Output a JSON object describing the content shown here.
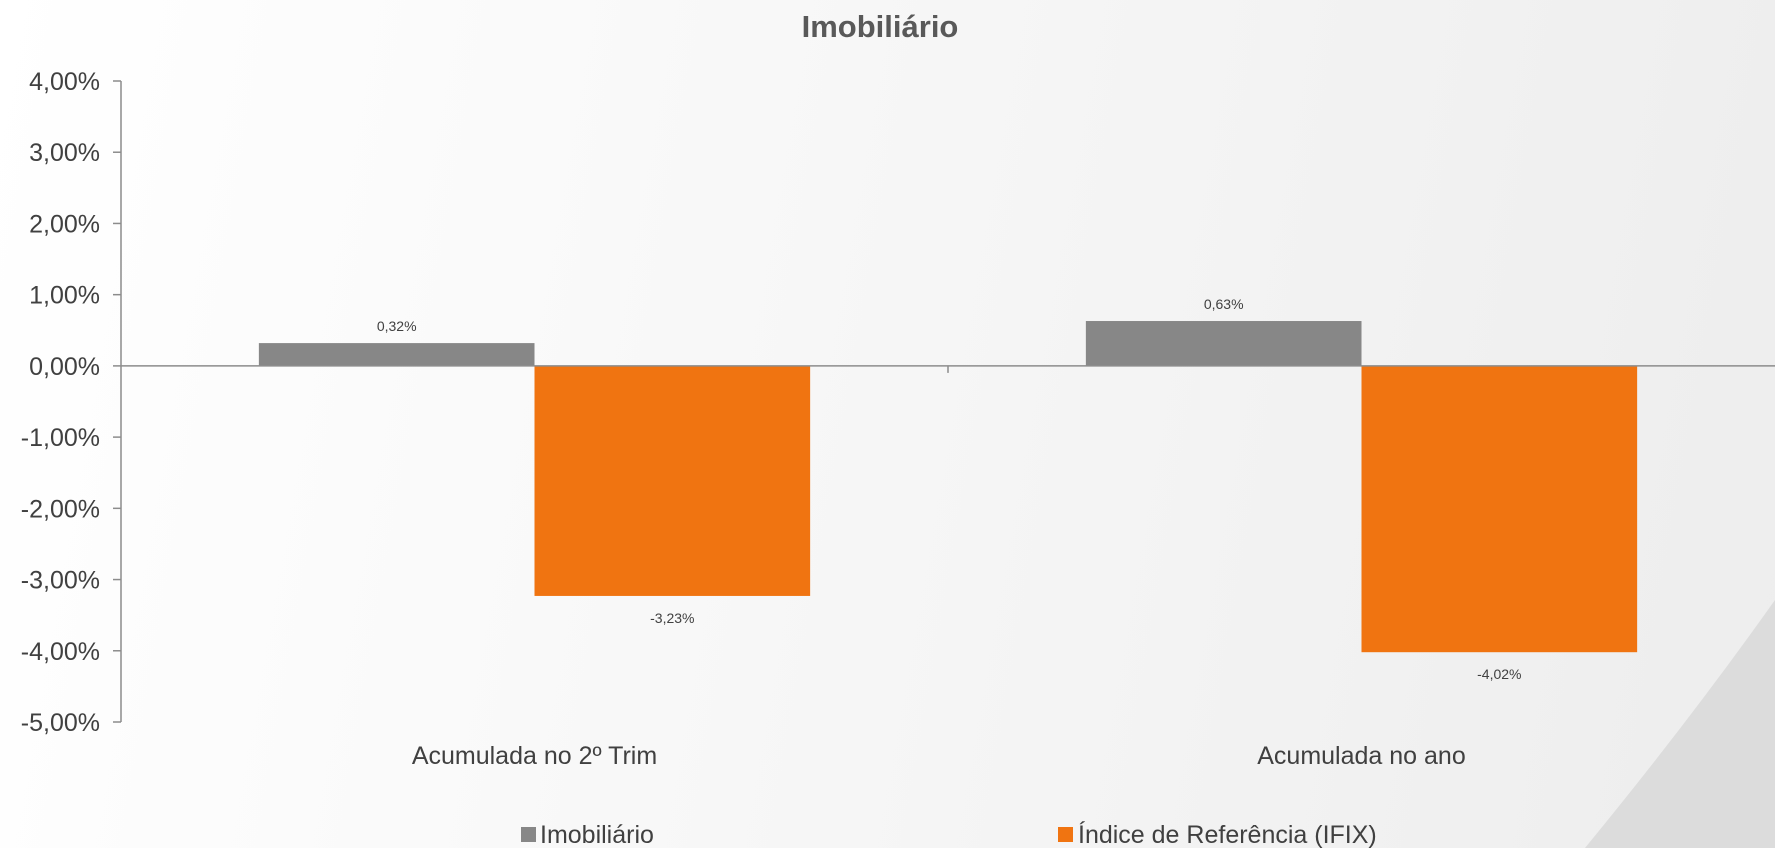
{
  "chart_data": {
    "type": "bar",
    "title": "Imobiliário",
    "categories": [
      "Acumulada no 2º Trim",
      "Acumulada no ano"
    ],
    "series": [
      {
        "name": "Imobiliário",
        "values": [
          0.32,
          0.63
        ],
        "labels": [
          "0,32%",
          "0,63%"
        ],
        "color": "#878787"
      },
      {
        "name": "Índice de Referência (IFIX)",
        "values": [
          -3.23,
          -4.02
        ],
        "labels": [
          "-3,23%",
          "-4,02%"
        ],
        "color": "#f07411"
      }
    ],
    "ylim": [
      -5,
      4
    ],
    "yticks": [
      4,
      3,
      2,
      1,
      0,
      -1,
      -2,
      -3,
      -4,
      -5
    ],
    "ytick_labels": [
      "4,00%",
      "3,00%",
      "2,00%",
      "1,00%",
      "0,00%",
      "-1,00%",
      "-2,00%",
      "-3,00%",
      "-4,00%",
      "-5,00%"
    ],
    "xlabel": "",
    "ylabel": "",
    "grid": false,
    "legend_position": "bottom"
  }
}
